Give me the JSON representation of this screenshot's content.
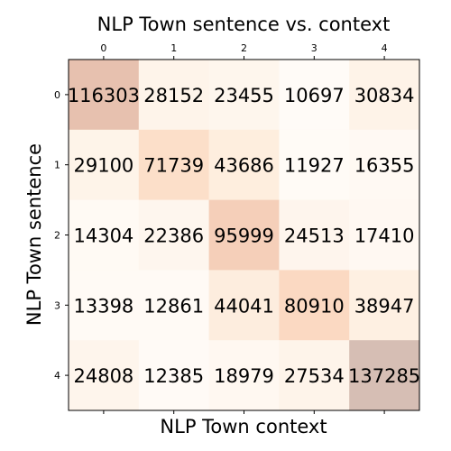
{
  "chart_data": {
    "type": "heatmap",
    "title": "NLP Town sentence vs. context",
    "xlabel": "NLP Town context",
    "ylabel": "NLP Town sentence",
    "x_ticks": [
      "0",
      "1",
      "2",
      "3",
      "4"
    ],
    "y_ticks": [
      "0",
      "1",
      "2",
      "3",
      "4"
    ],
    "x_tick_position": "top",
    "colormap": "white-to-orange-brown",
    "matrix": [
      [
        116303,
        28152,
        23455,
        10697,
        30834
      ],
      [
        29100,
        71739,
        43686,
        11927,
        16355
      ],
      [
        14304,
        22386,
        95999,
        24513,
        17410
      ],
      [
        13398,
        12861,
        44041,
        80910,
        38947
      ],
      [
        24808,
        12385,
        18979,
        27534,
        137285
      ]
    ]
  }
}
